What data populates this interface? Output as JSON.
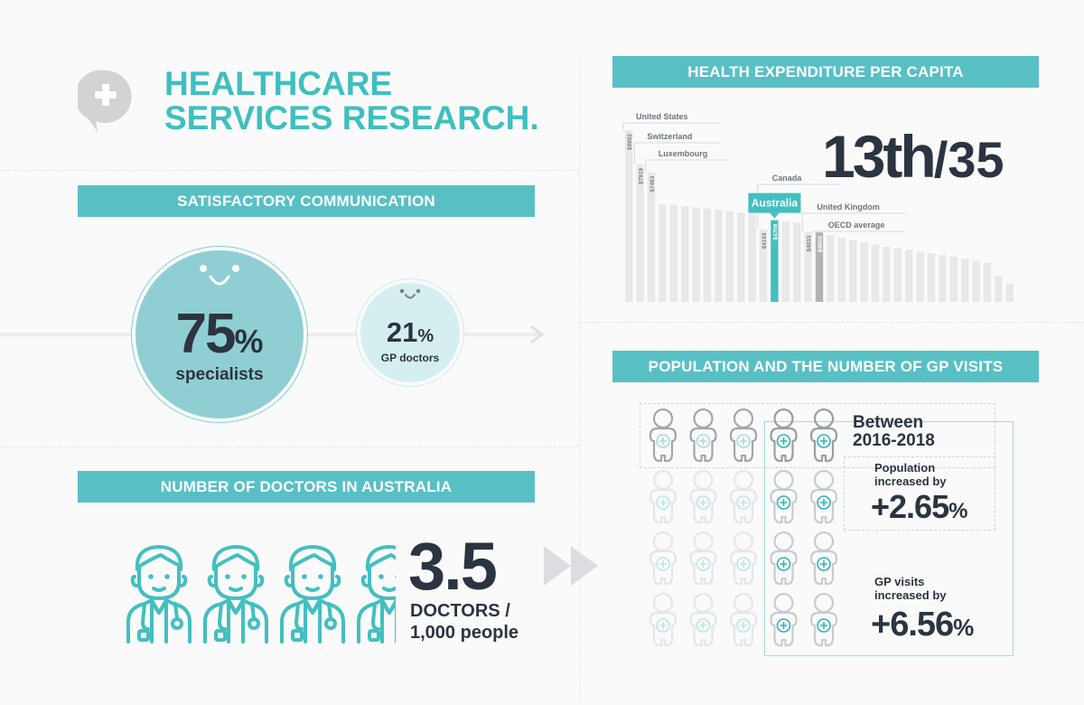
{
  "header": {
    "title_line1": "HEALTHCARE",
    "title_line2": "SERVICES RESEARCH."
  },
  "communication": {
    "banner": "SATISFACTORY COMMUNICATION",
    "big_value": "75",
    "big_unit": "%",
    "big_label": "specialists",
    "small_value": "21",
    "small_unit": "%",
    "small_label": "GP doctors"
  },
  "doctors": {
    "banner": "NUMBER OF DOCTORS IN AUSTRALIA",
    "value": "3.5",
    "label_line1": "DOCTORS /",
    "label_line2": "1,000 people"
  },
  "expenditure": {
    "banner": "HEALTH EXPENDITURE PER CAPITA",
    "rank": "13th",
    "rank_total": "/35"
  },
  "chart_data": {
    "type": "bar",
    "title": "HEALTH EXPENDITURE PER CAPITA",
    "values": [
      9892,
      7919,
      7463,
      5620,
      5580,
      5510,
      5450,
      5380,
      5300,
      5220,
      5150,
      5080,
      4193,
      4708,
      4640,
      4560,
      4033,
      4003,
      3850,
      3700,
      3560,
      3420,
      3290,
      3180,
      3070,
      2980,
      2890,
      2800,
      2700,
      2600,
      2480,
      2370,
      2250,
      1500,
      1050
    ],
    "highlight_index": 13,
    "average_index": 17,
    "annotations": [
      {
        "index": 0,
        "label": "United States",
        "value_label": "$9892"
      },
      {
        "index": 1,
        "label": "Switzerland",
        "value_label": "$7919"
      },
      {
        "index": 2,
        "label": "Luxembourg",
        "value_label": "$7463"
      },
      {
        "index": 12,
        "label": "Canada",
        "value_label": "$4193"
      },
      {
        "index": 13,
        "label": "Australia",
        "value_label": "$4708"
      },
      {
        "index": 16,
        "label": "United Kingdom",
        "value_label": "$4033"
      },
      {
        "index": 17,
        "label": "OECD average",
        "value_label": "$4003"
      }
    ],
    "colors": {
      "bar": "#e8e8e8",
      "highlight": "#43bfc0",
      "average": "#b3b3b3",
      "label": "#6d757c"
    }
  },
  "population": {
    "banner": "POPULATION AND THE NUMBER OF GP VISITS",
    "between_line1": "Between",
    "between_line2": "2016-2018",
    "pop_label_line1": "Population",
    "pop_label_line2": "increased by",
    "pop_value": "+2.65",
    "pop_unit": "%",
    "gp_label_line1": "GP visits",
    "gp_label_line2": "increased by",
    "gp_value": "+6.56",
    "gp_unit": "%"
  },
  "colors": {
    "accent": "#58c0c5",
    "dark": "#2b3440",
    "teal_text": "#3fbfbf"
  }
}
